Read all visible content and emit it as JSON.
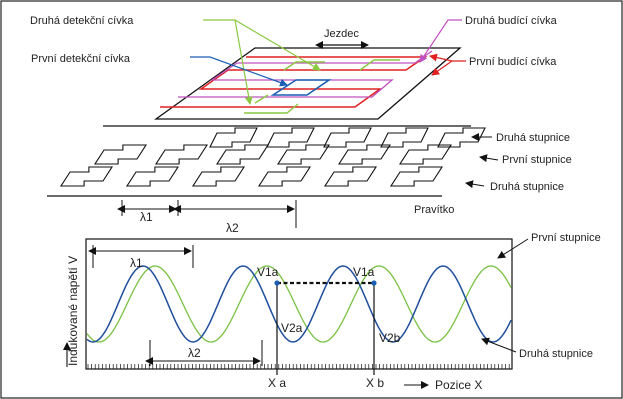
{
  "labels": {
    "second_detect_coil": "Druhá detekční cívka",
    "first_detect_coil": "První detekční cívka",
    "slider": "Jezdec",
    "second_excite_coil": "Druhá budící cívka",
    "first_excite_coil": "První budící cívka",
    "second_scale_top": "Druhá stupnice",
    "first_scale": "První stupnice",
    "second_scale_bottom": "Druhá stupnice",
    "ruler": "Pravítko",
    "lambda1_top": "λ1",
    "lambda2_top": "λ2",
    "lambda1_graph": "λ1",
    "lambda2_graph": "λ2",
    "wave_first_scale": "První stupnice",
    "wave_second_scale": "Druhá stupnice",
    "voltage_axis": "Indukované napětí V",
    "position_axis": "Pozice X",
    "v1a_left": "V1a",
    "v1a_right": "V1a",
    "v2a": "V2a",
    "v2b": "V2b",
    "xa": "X a",
    "xb": "X b"
  },
  "colors": {
    "first_scale_wave": "#1f4e9c",
    "second_scale_wave": "#7ac043",
    "first_excite": "#e02020",
    "second_excite": "#c050c0",
    "detect_green": "#8ac840",
    "detect_blue": "#1a5fb4"
  }
}
